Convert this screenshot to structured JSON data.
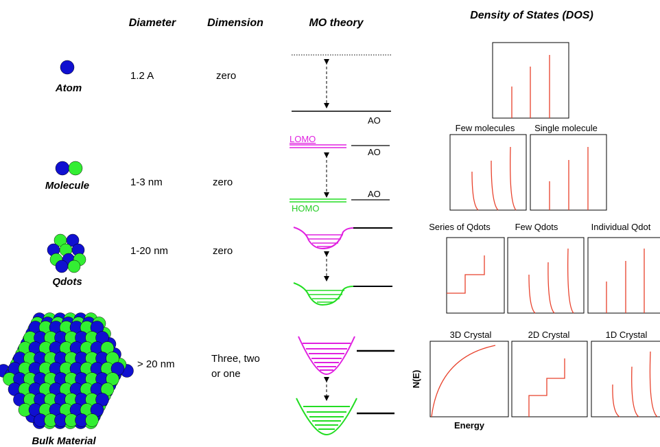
{
  "headers": {
    "diameter": "Diameter",
    "dimension": "Dimension",
    "mo_theory": "MO theory",
    "dos": "Density of States (DOS)"
  },
  "rows": [
    {
      "name": "Atom",
      "diameter": "1.2 A",
      "dimension": [
        "zero"
      ]
    },
    {
      "name": "Molecule",
      "diameter": "1-3 nm",
      "dimension": [
        "zero"
      ]
    },
    {
      "name": "Qdots",
      "diameter": "1-20 nm",
      "dimension": [
        "zero"
      ]
    },
    {
      "name": "Bulk Material",
      "diameter": "> 20 nm",
      "dimension": [
        "Three, two",
        "or one"
      ]
    }
  ],
  "mo_labels": {
    "ao": [
      "AO",
      "AO",
      "AO"
    ],
    "lomo": "LOMO",
    "homo": "HOMO"
  },
  "dos_panels": [
    "Few molecules",
    "Single molecule",
    "Series of Qdots",
    "Few Qdots",
    "Individual Qdot",
    "3D Crystal",
    "2D Crystal",
    "1D Crystal"
  ],
  "axis": {
    "y": "N(E)",
    "x": "Energy"
  }
}
